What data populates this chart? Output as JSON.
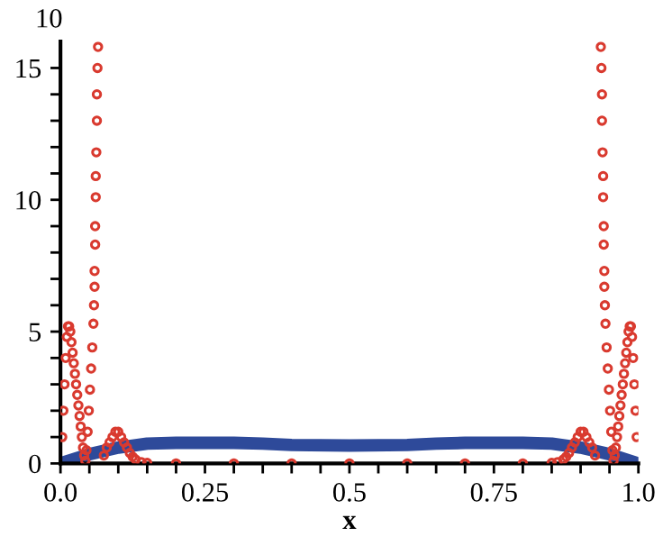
{
  "chart_data": {
    "type": "line",
    "xlabel": "x",
    "ylabel": "10",
    "xlim": [
      0,
      1.0
    ],
    "ylim": [
      0,
      16
    ],
    "xticks": [
      {
        "value": 0,
        "label": "0.0"
      },
      {
        "value": 0.05,
        "label": null
      },
      {
        "value": 0.1,
        "label": null
      },
      {
        "value": 0.15,
        "label": null
      },
      {
        "value": 0.2,
        "label": null
      },
      0.25,
      {
        "value": 0.3,
        "label": null
      },
      {
        "value": 0.35,
        "label": null
      },
      {
        "value": 0.4,
        "label": null
      },
      {
        "value": 0.45,
        "label": null
      },
      0.5,
      {
        "value": 0.55,
        "label": null
      },
      {
        "value": 0.6,
        "label": null
      },
      {
        "value": 0.65,
        "label": null
      },
      {
        "value": 0.7,
        "label": null
      },
      0.75,
      {
        "value": 0.8,
        "label": null
      },
      {
        "value": 0.85,
        "label": null
      },
      {
        "value": 0.9,
        "label": null
      },
      {
        "value": 0.95,
        "label": null
      },
      {
        "value": 1.0,
        "label": "1.0"
      }
    ],
    "yticks": [
      0,
      {
        "value": 1,
        "label": null
      },
      {
        "value": 2,
        "label": null
      },
      {
        "value": 3,
        "label": null
      },
      {
        "value": 4,
        "label": null
      },
      5,
      {
        "value": 6,
        "label": null
      },
      {
        "value": 7,
        "label": null
      },
      {
        "value": 8,
        "label": null
      },
      {
        "value": 9,
        "label": null
      },
      10,
      {
        "value": 11,
        "label": null
      },
      {
        "value": 12,
        "label": null
      },
      {
        "value": 13,
        "label": null
      },
      {
        "value": 14,
        "label": null
      },
      15
    ],
    "grid": false,
    "legend": false,
    "series": [
      {
        "color": "#2e4a9a",
        "marker": "none",
        "line_style": "solid",
        "x": [
          0,
          0.05,
          0.1,
          0.15,
          0.2,
          0.3,
          0.35,
          0.4,
          0.5,
          0.6,
          0.65,
          0.7,
          0.8,
          0.85,
          0.9,
          0.95,
          1.0
        ],
        "values": [
          0,
          0.35,
          0.6,
          0.75,
          0.78,
          0.78,
          0.75,
          0.7,
          0.68,
          0.7,
          0.75,
          0.78,
          0.78,
          0.75,
          0.6,
          0.35,
          0
        ]
      },
      {
        "type": "scatter",
        "color": "#d93a2f",
        "marker": "circle",
        "x": [
          0.003,
          0.005,
          0.007,
          0.009,
          0.011,
          0.013,
          0.015,
          0.017,
          0.019,
          0.021,
          0.023,
          0.025,
          0.027,
          0.029,
          0.031,
          0.033,
          0.035,
          0.037,
          0.039,
          0.041,
          0.043,
          0.045,
          0.047,
          0.049,
          0.051,
          0.053,
          0.055,
          0.057,
          0.058,
          0.059,
          0.059,
          0.06,
          0.06,
          0.061,
          0.061,
          0.062,
          0.063,
          0.063,
          0.064,
          0.065,
          0.075,
          0.08,
          0.085,
          0.09,
          0.095,
          0.1,
          0.105,
          0.11,
          0.115,
          0.12,
          0.125,
          0.13,
          0.14,
          0.15,
          0.2,
          0.3,
          0.4,
          0.5,
          0.6,
          0.7,
          0.8,
          0.85,
          0.86,
          0.87,
          0.875,
          0.88,
          0.885,
          0.89,
          0.895,
          0.9,
          0.905,
          0.91,
          0.915,
          0.92,
          0.925,
          0.935,
          0.936,
          0.937,
          0.937,
          0.938,
          0.939,
          0.939,
          0.94,
          0.94,
          0.941,
          0.941,
          0.942,
          0.943,
          0.945,
          0.947,
          0.949,
          0.951,
          0.953,
          0.955,
          0.957,
          0.959,
          0.961,
          0.963,
          0.965,
          0.967,
          0.969,
          0.971,
          0.973,
          0.975,
          0.977,
          0.979,
          0.981,
          0.983,
          0.985,
          0.987,
          0.989,
          0.991,
          0.993,
          0.995,
          0.997
        ],
        "values": [
          1.0,
          2.0,
          3.0,
          4.0,
          4.8,
          5.2,
          5.2,
          5.0,
          4.6,
          4.2,
          3.8,
          3.4,
          3.0,
          2.6,
          2.2,
          1.8,
          1.4,
          1.0,
          0.6,
          0.3,
          0.1,
          0.5,
          1.2,
          2.0,
          2.8,
          3.6,
          4.4,
          5.3,
          6.0,
          6.7,
          7.3,
          8.3,
          9.0,
          10.1,
          10.9,
          11.8,
          13.0,
          14.0,
          15.0,
          15.8,
          0.3,
          0.6,
          0.8,
          1.0,
          1.2,
          1.2,
          1.0,
          0.8,
          0.6,
          0.4,
          0.25,
          0.15,
          0.05,
          0.02,
          0,
          0,
          0,
          0,
          0,
          0,
          0,
          0.02,
          0.05,
          0.15,
          0.25,
          0.4,
          0.6,
          0.8,
          1.0,
          1.2,
          1.2,
          1.0,
          0.8,
          0.6,
          0.3,
          15.8,
          15.0,
          14.0,
          13.0,
          11.8,
          10.9,
          10.1,
          9.0,
          8.3,
          7.3,
          6.7,
          6.0,
          5.3,
          4.4,
          3.6,
          2.8,
          2.0,
          1.2,
          0.5,
          0.1,
          0.3,
          0.6,
          1.0,
          1.4,
          1.8,
          2.2,
          2.6,
          3.0,
          3.4,
          3.8,
          4.2,
          4.6,
          5.0,
          5.2,
          5.2,
          4.8,
          4.0,
          3.0,
          2.0,
          1.0
        ]
      }
    ]
  }
}
